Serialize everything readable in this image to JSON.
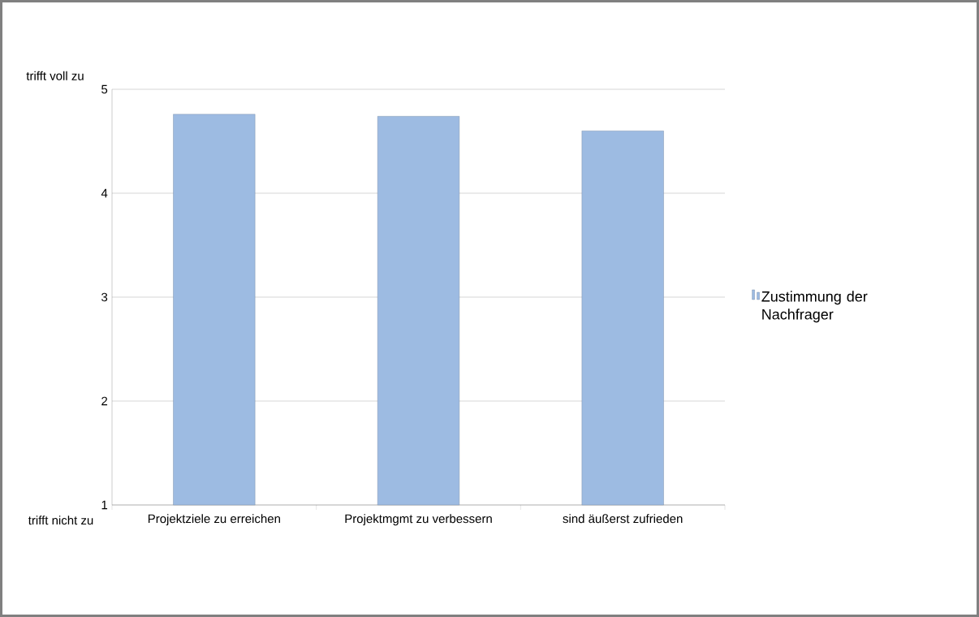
{
  "chart_data": {
    "type": "bar",
    "categories": [
      "Projektziele zu erreichen",
      "Projektmgmt zu verbessern",
      "sind äußerst zufrieden"
    ],
    "series": [
      {
        "name": "Zustimmung der Nachfrager",
        "color": "#9dbbe2",
        "values": [
          4.76,
          4.74,
          4.6
        ]
      }
    ],
    "ylim": [
      1,
      5
    ],
    "yticks": [
      1,
      2,
      3,
      4,
      5
    ],
    "grid": "y",
    "legend": "right",
    "annotations": [
      "trifft voll zu",
      "trifft nicht zu"
    ]
  }
}
